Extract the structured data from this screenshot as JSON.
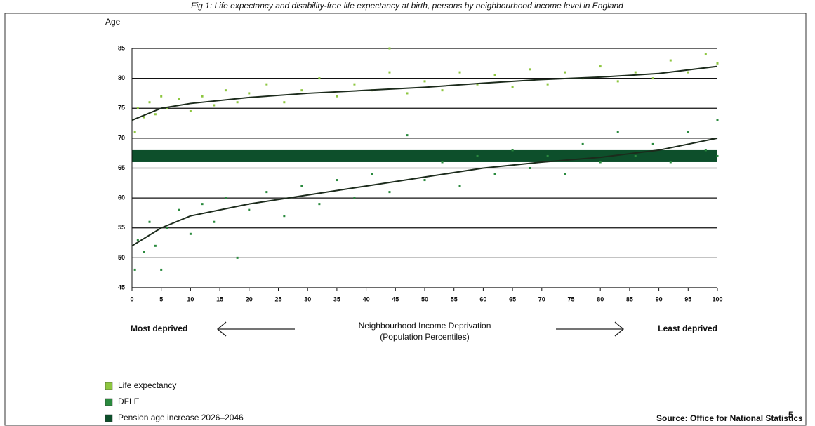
{
  "chart_data": {
    "type": "scatter",
    "title": "Fig 1:     Life expectancy and disability-free life expectancy at birth, persons by neighbourhood income level in England",
    "y_label": "Age",
    "x_label": [
      "Neighbourhood Income Deprivation",
      "(Population Percentiles)"
    ],
    "left_note": "Most deprived",
    "right_note": "Least deprived",
    "source": "Source: Office for National Statistics",
    "source_ref": "5",
    "xlim": [
      0,
      100
    ],
    "xticks": [
      0,
      5,
      10,
      15,
      20,
      25,
      30,
      35,
      40,
      45,
      50,
      55,
      60,
      65,
      70,
      75,
      80,
      85,
      90,
      95,
      100
    ],
    "ylim": [
      45,
      85
    ],
    "yticks": [
      45,
      50,
      55,
      60,
      65,
      70,
      75,
      80,
      85
    ],
    "grid": true,
    "series": [
      {
        "name": "Life expectancy",
        "color": "#8dc63f",
        "x": [
          0.5,
          1,
          2,
          3,
          4,
          5,
          6,
          8,
          10,
          12,
          14,
          16,
          18,
          20,
          23,
          26,
          29,
          32,
          35,
          38,
          41,
          44,
          47,
          50,
          53,
          56,
          59,
          62,
          65,
          68,
          71,
          74,
          77,
          80,
          83,
          86,
          89,
          92,
          95,
          98,
          100,
          44
        ],
        "values": [
          71,
          75,
          73.5,
          76,
          74,
          77,
          75,
          76.5,
          74.5,
          77,
          75.5,
          78,
          76,
          77.5,
          79,
          76,
          78,
          80,
          77,
          79,
          78,
          81,
          77.5,
          79.5,
          78,
          81,
          79,
          80.5,
          78.5,
          81.5,
          79,
          81,
          80,
          82,
          79.5,
          81,
          80,
          83,
          81,
          84,
          82.5,
          85
        ],
        "trend": {
          "color": "#1c2b1c",
          "x": [
            0,
            5,
            10,
            20,
            30,
            40,
            50,
            60,
            70,
            80,
            90,
            100
          ],
          "values": [
            73,
            75,
            75.8,
            76.8,
            77.5,
            78,
            78.5,
            79.2,
            79.8,
            80.2,
            80.8,
            82
          ]
        }
      },
      {
        "name": "DFLE",
        "color": "#2a8a3e",
        "x": [
          0.5,
          1,
          2,
          3,
          4,
          5,
          6,
          8,
          10,
          12,
          14,
          16,
          18,
          20,
          23,
          26,
          29,
          32,
          35,
          38,
          41,
          44,
          47,
          50,
          53,
          56,
          59,
          62,
          65,
          68,
          71,
          74,
          77,
          80,
          83,
          86,
          89,
          92,
          95,
          98,
          100,
          100
        ],
        "values": [
          48,
          53,
          51,
          56,
          52,
          48,
          55,
          58,
          54,
          59,
          56,
          60,
          50,
          58,
          61,
          57,
          62,
          59,
          63,
          60,
          64,
          61,
          70.5,
          63,
          66,
          62,
          67,
          64,
          68,
          65,
          67,
          64,
          69,
          66,
          71,
          67,
          69,
          66,
          71,
          68,
          73,
          67
        ],
        "trend": {
          "color": "#1c2b1c",
          "x": [
            0,
            5,
            10,
            20,
            30,
            40,
            50,
            60,
            70,
            80,
            90,
            100
          ],
          "values": [
            52,
            55,
            57,
            59,
            60.5,
            62,
            63.5,
            65,
            66,
            66.8,
            68,
            70
          ]
        }
      }
    ],
    "band": {
      "name": "Pension age increase 2026–2046",
      "color": "#0d4f2b",
      "range": [
        66,
        68
      ]
    }
  }
}
